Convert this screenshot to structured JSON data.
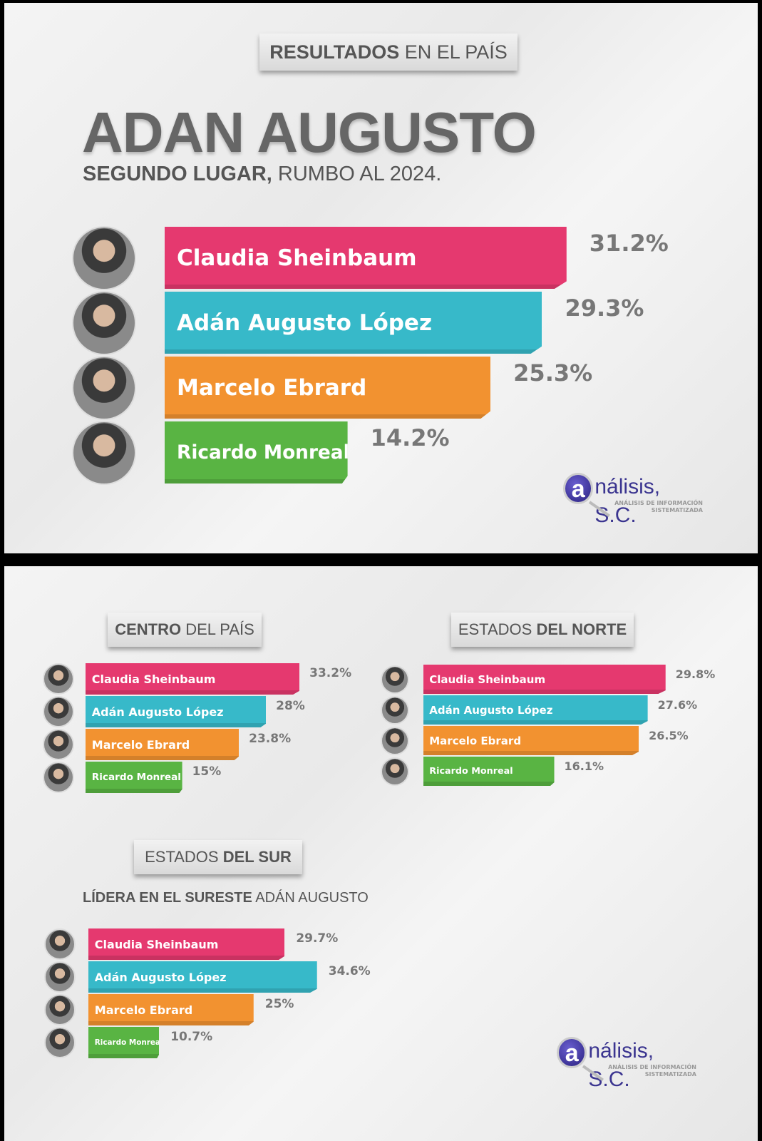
{
  "panel1": {
    "tag": {
      "bold": "RESULTADOS",
      "normal": " EN EL PAÍS"
    },
    "title": "ADAN AUGUSTO",
    "subtitle": {
      "bold": "SEGUNDO LUGAR,",
      "normal": " RUMBO AL 2024."
    }
  },
  "panel2": {
    "centro_tag": {
      "bold": "CENTRO",
      "normal": " DEL PAÍS"
    },
    "norte_tag": {
      "normal": "ESTADOS ",
      "bold": "DEL NORTE"
    },
    "sur_tag": {
      "normal": "ESTADOS ",
      "bold": "DEL SUR"
    },
    "sur_subtitle": {
      "bold": "LÍDERA EN EL SURESTE",
      "normal": " ADÁN AUGUSTO"
    }
  },
  "logo": {
    "letter": "a",
    "name": "nálisis, S.C.",
    "line1": "ANÁLISIS DE INFORMACIÓN",
    "line2": "SISTEMATIZADA"
  },
  "colors": {
    "Claudia Sheinbaum": "#e5396f",
    "Adán Augusto López": "#37b9c9",
    "Marcelo Ebrard": "#f29230",
    "Ricardo Monreal": "#59b443"
  },
  "chart_data": [
    {
      "type": "bar",
      "title": "RESULTADOS EN EL PAÍS",
      "categories": [
        "Claudia Sheinbaum",
        "Adán Augusto López",
        "Marcelo Ebrard",
        "Ricardo Monreal"
      ],
      "values": [
        31.2,
        29.3,
        25.3,
        14.2
      ],
      "labels": [
        "31.2%",
        "29.3%",
        "25.3%",
        "14.2%"
      ]
    },
    {
      "type": "bar",
      "title": "CENTRO DEL PAÍS",
      "categories": [
        "Claudia Sheinbaum",
        "Adán Augusto López",
        "Marcelo Ebrard",
        "Ricardo Monreal"
      ],
      "values": [
        33.2,
        28,
        23.8,
        15
      ],
      "labels": [
        "33.2%",
        "28%",
        "23.8%",
        "15%"
      ]
    },
    {
      "type": "bar",
      "title": "ESTADOS DEL NORTE",
      "categories": [
        "Claudia Sheinbaum",
        "Adán Augusto López",
        "Marcelo Ebrard",
        "Ricardo Monreal"
      ],
      "values": [
        29.8,
        27.6,
        26.5,
        16.1
      ],
      "labels": [
        "29.8%",
        "27.6%",
        "26.5%",
        "16.1%"
      ]
    },
    {
      "type": "bar",
      "title": "ESTADOS DEL SUR",
      "categories": [
        "Claudia Sheinbaum",
        "Adán Augusto López",
        "Marcelo Ebrard",
        "Ricardo Monreal"
      ],
      "values": [
        29.7,
        34.6,
        25,
        10.7
      ],
      "labels": [
        "29.7%",
        "34.6%",
        "25%",
        "10.7%"
      ]
    }
  ]
}
